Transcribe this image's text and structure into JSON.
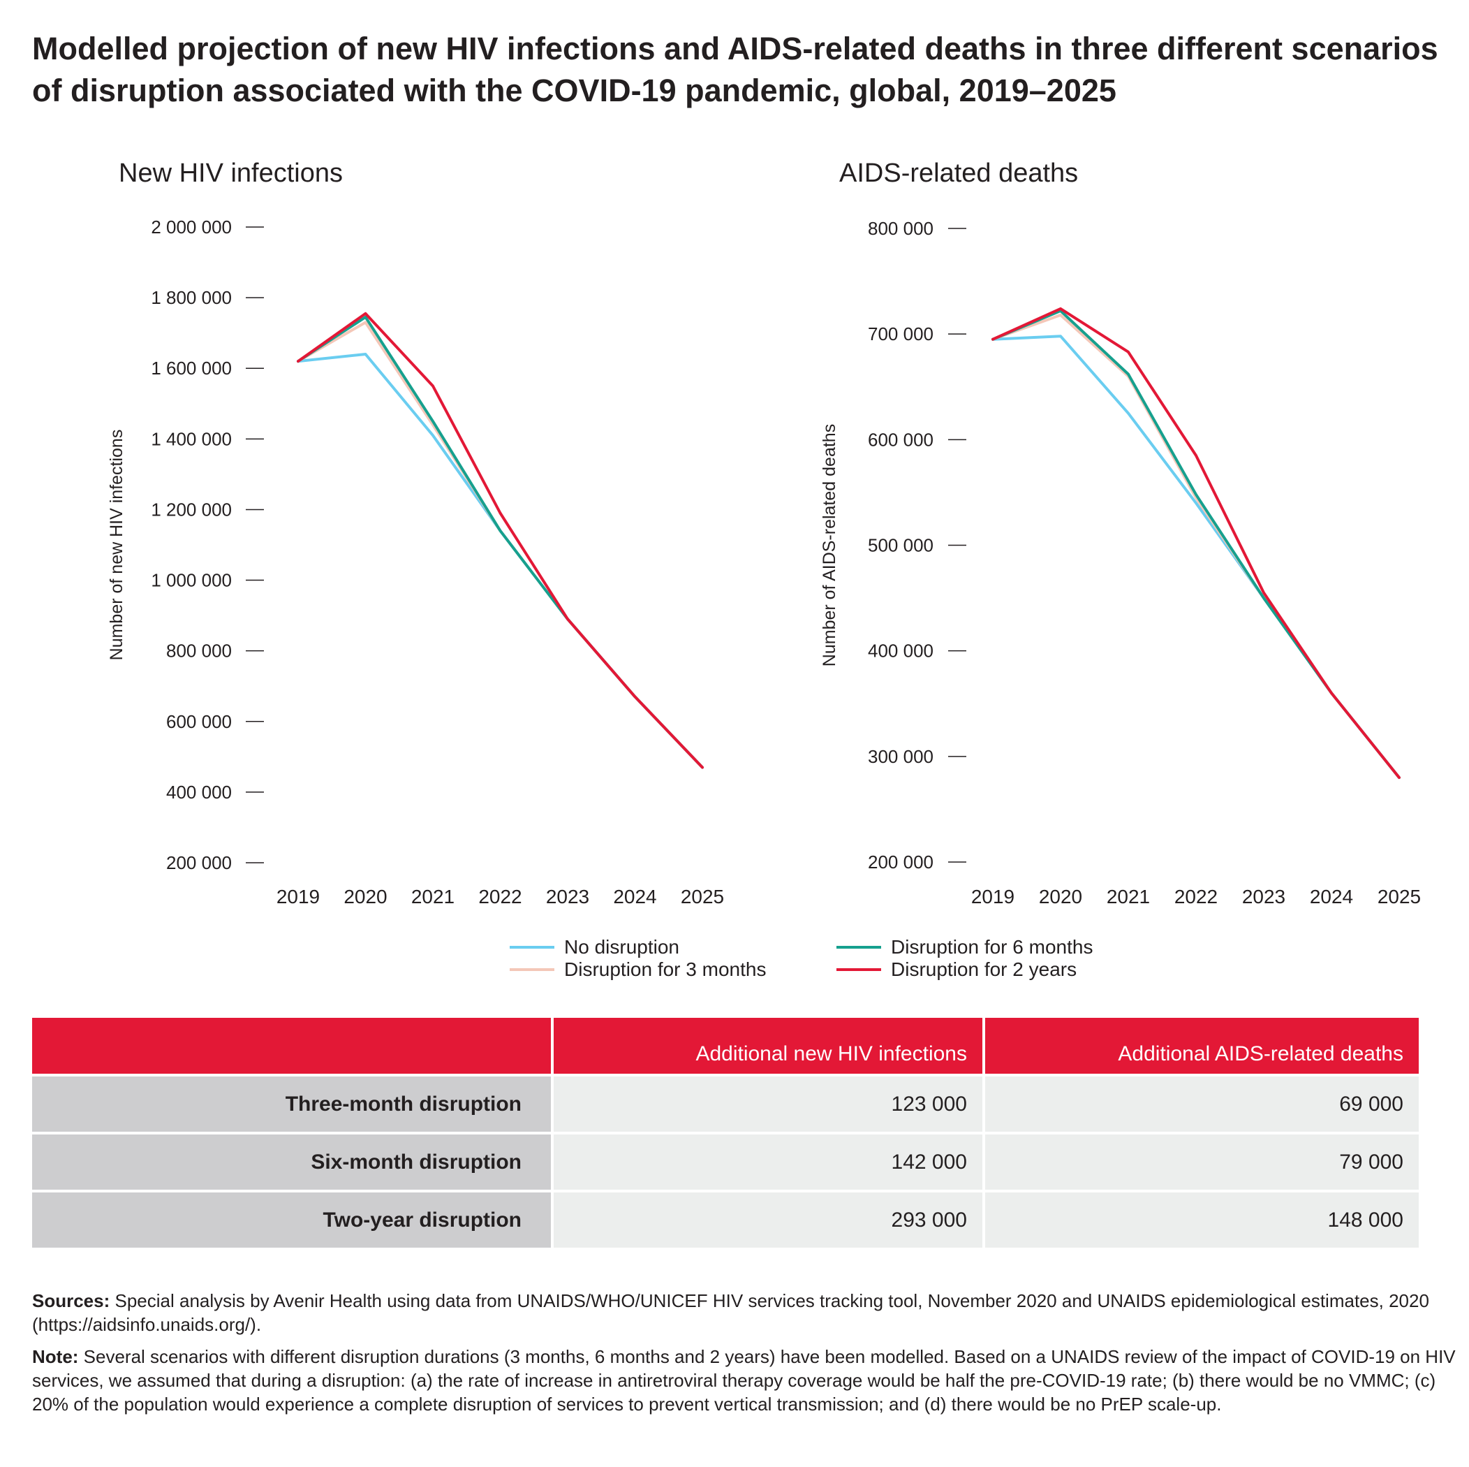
{
  "title": "Modelled projection of new HIV infections and AIDS-related deaths in three different scenarios of disruption associated with the COVID-19 pandemic, global, 2019–2025",
  "chart_data": [
    {
      "type": "line",
      "title": "New HIV infections",
      "ylabel": "Number of new HIV infections",
      "xlabel": "",
      "x": [
        "2019",
        "2020",
        "2021",
        "2022",
        "2023",
        "2024",
        "2025"
      ],
      "ylim": [
        200000,
        2000000
      ],
      "yticks": [
        200000,
        400000,
        600000,
        800000,
        1000000,
        1200000,
        1400000,
        1600000,
        1800000,
        2000000
      ],
      "ytick_labels": [
        "200 000",
        "400 000",
        "600 000",
        "800 000",
        "1 000 000",
        "1 200 000",
        "1 400 000",
        "1 600 000",
        "1 800 000",
        "2 000 000"
      ],
      "grid": false,
      "series": [
        {
          "name": "No disruption",
          "color": "#6acdf0",
          "values": [
            1620000,
            1640000,
            1410000,
            1140000,
            890000,
            670000,
            470000
          ]
        },
        {
          "name": "Disruption for 3 months",
          "color": "#f4c7b8",
          "values": [
            1620000,
            1730000,
            1440000,
            1140000,
            890000,
            670000,
            470000
          ]
        },
        {
          "name": "Disruption for 6 months",
          "color": "#16a08e",
          "values": [
            1620000,
            1745000,
            1450000,
            1140000,
            890000,
            670000,
            470000
          ]
        },
        {
          "name": "Disruption for 2 years",
          "color": "#e31836",
          "values": [
            1620000,
            1755000,
            1550000,
            1190000,
            890000,
            670000,
            470000
          ]
        }
      ]
    },
    {
      "type": "line",
      "title": "AIDS-related deaths",
      "ylabel": "Number of AIDS-related deaths",
      "xlabel": "",
      "x": [
        "2019",
        "2020",
        "2021",
        "2022",
        "2023",
        "2024",
        "2025"
      ],
      "ylim": [
        200000,
        800000
      ],
      "yticks": [
        200000,
        300000,
        400000,
        500000,
        600000,
        700000,
        800000
      ],
      "ytick_labels": [
        "200 000",
        "300 000",
        "400 000",
        "500 000",
        "600 000",
        "700 000",
        "800 000"
      ],
      "grid": false,
      "series": [
        {
          "name": "No disruption",
          "color": "#6acdf0",
          "values": [
            695000,
            698000,
            625000,
            540000,
            450000,
            360000,
            280000
          ]
        },
        {
          "name": "Disruption for 3 months",
          "color": "#f4c7b8",
          "values": [
            695000,
            718000,
            660000,
            545000,
            450000,
            360000,
            280000
          ]
        },
        {
          "name": "Disruption for 6 months",
          "color": "#16a08e",
          "values": [
            695000,
            722000,
            662000,
            548000,
            450000,
            360000,
            280000
          ]
        },
        {
          "name": "Disruption for 2 years",
          "color": "#e31836",
          "values": [
            695000,
            724000,
            683000,
            585000,
            455000,
            360000,
            280000
          ]
        }
      ]
    }
  ],
  "legend": [
    {
      "label": "No disruption",
      "color": "#6acdf0"
    },
    {
      "label": "Disruption for 6 months",
      "color": "#16a08e"
    },
    {
      "label": "Disruption for 3 months",
      "color": "#f4c7b8"
    },
    {
      "label": "Disruption for 2 years",
      "color": "#e31836"
    }
  ],
  "table": {
    "headers": [
      "",
      "Additional new HIV infections",
      "Additional AIDS-related deaths"
    ],
    "rows": [
      [
        "Three-month disruption",
        "123 000",
        "69 000"
      ],
      [
        "Six-month disruption",
        "142 000",
        "79 000"
      ],
      [
        "Two-year disruption",
        "293 000",
        "148 000"
      ]
    ]
  },
  "notes": {
    "sources_label": "Sources:",
    "sources_text": " Special analysis by Avenir Health using data from UNAIDS/WHO/UNICEF HIV services tracking tool, November 2020 and UNAIDS epidemiological estimates, 2020 (https://aidsinfo.unaids.org/).",
    "note_label": "Note:",
    "note_text": " Several scenarios with different disruption durations (3 months, 6 months and 2 years) have been modelled. Based on a UNAIDS review of the impact of COVID-19 on HIV services, we assumed that during a disruption: (a) the rate of increase in antiretroviral therapy coverage would be half the pre-COVID-19 rate; (b) there would be no VMMC; (c) 20% of the population would experience a complete disruption of services to prevent vertical transmission; and (d) there would be no PrEP scale-up."
  }
}
